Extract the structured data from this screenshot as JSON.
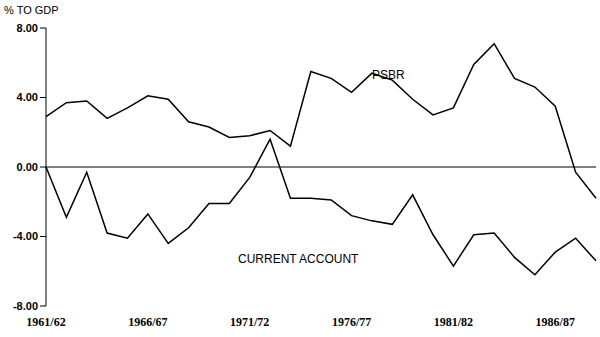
{
  "chart_data": {
    "type": "line",
    "y_label": "% TO GDP",
    "categories": [
      "1961/62",
      null,
      null,
      null,
      null,
      "1966/67",
      null,
      null,
      null,
      null,
      "1971/72",
      null,
      null,
      null,
      null,
      "1976/77",
      null,
      null,
      null,
      null,
      "1981/82",
      null,
      null,
      null,
      null,
      "1986/87",
      null,
      null
    ],
    "series": [
      {
        "name": "PSBR",
        "color": "#000000",
        "values": [
          2.9,
          3.7,
          3.8,
          2.8,
          3.4,
          4.1,
          3.9,
          2.6,
          2.3,
          1.7,
          1.8,
          2.1,
          1.2,
          5.5,
          5.1,
          4.3,
          5.4,
          5.0,
          3.9,
          3.0,
          3.4,
          5.9,
          7.1,
          5.1,
          4.6,
          3.5,
          -0.3,
          -1.8
        ]
      },
      {
        "name": "CURRENT ACCOUNT",
        "color": "#000000",
        "values": [
          0,
          -2.9,
          -0.3,
          -3.8,
          -4.1,
          -2.7,
          -4.4,
          -3.5,
          -2.1,
          -2.1,
          -0.6,
          1.6,
          -1.8,
          -1.8,
          -1.9,
          -2.8,
          -3.1,
          -3.3,
          -1.6,
          -3.9,
          -5.7,
          -3.9,
          -3.8,
          -5.2,
          -6.2,
          -4.9,
          -4.1,
          -5.4
        ]
      }
    ],
    "ylim": [
      -8,
      8
    ],
    "yticks": [
      {
        "value": 8,
        "label": "8.00"
      },
      {
        "value": 4,
        "label": "4.00"
      },
      {
        "value": 0,
        "label": "0.00"
      },
      {
        "value": -4,
        "label": "-4.00"
      },
      {
        "value": -8,
        "label": "-8.00"
      }
    ],
    "grid": false
  }
}
